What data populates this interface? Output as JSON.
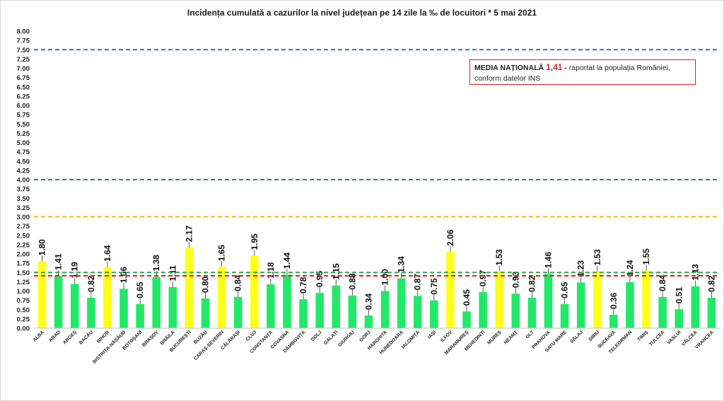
{
  "chart_data": {
    "type": "bar",
    "title": "Incidența cumulată a cazurilor la nivel județean pe 14 zile la ‰ de locuitori *   5 mai 2021",
    "xlabel": "",
    "ylabel": "",
    "ylim": [
      0,
      8
    ],
    "ytick_step": 0.25,
    "grid": false,
    "categories": [
      "ALBA",
      "ARAD",
      "ARGEȘ",
      "BACĂU",
      "BIHOR",
      "BISTRIȚA-NĂSĂUD",
      "BOTOȘANI",
      "BRAȘOV",
      "BRĂILA",
      "BUCUREȘTI",
      "BUZĂU",
      "CARAȘ-SEVERIN",
      "CĂLĂRAȘI",
      "CLUJ",
      "CONSTANȚA",
      "COVASNA",
      "DÂMBOVIȚA",
      "DOLJ",
      "GALAȚI",
      "GIURGIU",
      "GORJ",
      "HARGHITA",
      "HUNEDOARA",
      "IALOMIȚA",
      "IAȘI",
      "ILFOV",
      "MARAMUREȘ",
      "MEHEDINȚI",
      "MUREȘ",
      "NEAMȚ",
      "OLT",
      "PRAHOVA",
      "SATU MARE",
      "SĂLAJ",
      "SIBIU",
      "SUCEAVA",
      "TELEORMAN",
      "TIMIȘ",
      "TULCEA",
      "VASLUI",
      "VÂLCEA",
      "VRANCEA"
    ],
    "values": [
      1.8,
      1.41,
      1.19,
      0.82,
      1.64,
      1.06,
      0.65,
      1.38,
      1.11,
      2.17,
      0.8,
      1.65,
      0.84,
      1.95,
      1.18,
      1.44,
      0.78,
      0.95,
      1.15,
      0.88,
      0.34,
      1.0,
      1.34,
      0.87,
      0.75,
      2.06,
      0.45,
      0.97,
      1.53,
      0.93,
      0.82,
      1.46,
      0.65,
      1.23,
      1.53,
      0.36,
      1.24,
      1.55,
      0.84,
      0.51,
      1.13,
      0.82
    ],
    "value_labels": [
      "1.80",
      "1.41",
      "1.19",
      "0.82",
      "1.64",
      "1.06",
      "0.65",
      "1.38",
      "1.11",
      "2.17",
      "0.80",
      "1.65",
      "0.84",
      "1.95",
      "1.18",
      "1.44",
      "0.78",
      "0.95",
      "1.15",
      "0.88",
      "0.34",
      "1.00",
      "1.34",
      "0.87",
      "0.75",
      "2.06",
      "0.45",
      "0.97",
      "1.53",
      "0.93",
      "0.82",
      "1.46",
      "0.65",
      "1.23",
      "1.53",
      "0.36",
      "1.24",
      "1.55",
      "0.84",
      "0.51",
      "1.13",
      "0.82"
    ],
    "highlight_threshold": 1.5,
    "colors": {
      "bar_low": "#22e86a",
      "bar_high": "#ffff1a",
      "line_blue": "#2f75b5",
      "line_yellow": "#e6c200",
      "line_green": "#2ba84a",
      "line_red": "#e02020"
    },
    "reference_lines": [
      {
        "value": 7.5,
        "color": "#2f75b5",
        "style": "dashed"
      },
      {
        "value": 4.0,
        "color": "#2f75b5",
        "style": "dashed"
      },
      {
        "value": 3.0,
        "color": "#e6c200",
        "style": "dashed"
      },
      {
        "value": 1.5,
        "color": "#2ba84a",
        "style": "dashed"
      },
      {
        "value": 1.41,
        "color": "#e02020",
        "style": "dashed"
      }
    ],
    "annotation": {
      "label": "MEDIA NAȚIONALĂ",
      "value": "1,41",
      "dash": "-",
      "text1": " raportat la populația României,",
      "text2": "conform datelor INS"
    }
  }
}
